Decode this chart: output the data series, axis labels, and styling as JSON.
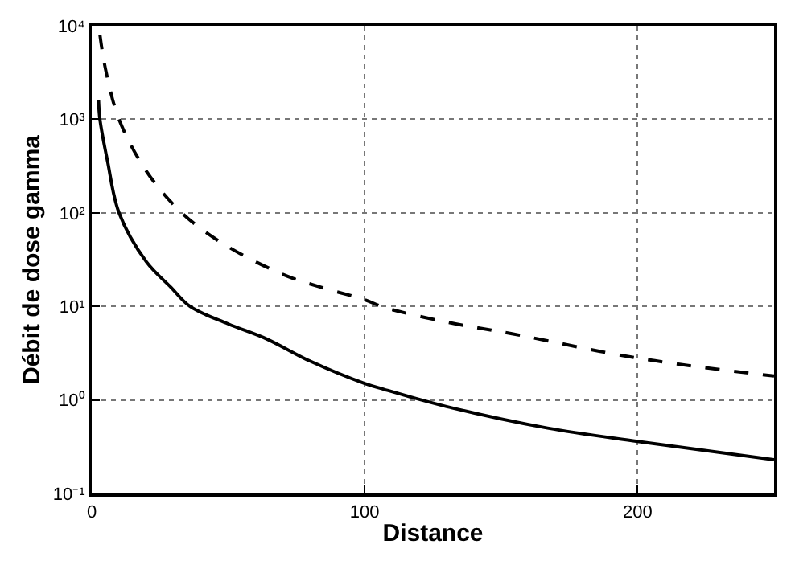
{
  "chart_data": {
    "type": "line",
    "xlabel": "Distance",
    "ylabel": "Débit de dose gamma",
    "log": "y",
    "grid": true,
    "marker": "none",
    "xlim": [
      0,
      250
    ],
    "xticks": [
      0,
      100,
      200
    ],
    "ylim": [
      0.1,
      10000
    ],
    "yticks": [
      {
        "value": 0.1,
        "label": "10⁻¹"
      },
      {
        "value": 1,
        "label": "10⁰"
      },
      {
        "value": 10,
        "label": "10¹"
      },
      {
        "value": 100,
        "label": "10²"
      },
      {
        "value": 1000,
        "label": "10³"
      },
      {
        "value": 10000,
        "label": "10⁴"
      }
    ],
    "series": [
      {
        "color": "#000000",
        "line_style": "solid",
        "x": [
          2.5,
          3,
          5.8,
          10,
          20,
          29,
          36,
          50,
          64,
          80,
          100,
          107,
          130,
          167,
          200,
          250
        ],
        "values": [
          1600,
          1000,
          355,
          100,
          30,
          16,
          10,
          6.5,
          4.5,
          2.6,
          1.5,
          1.3,
          0.85,
          0.5,
          0.36,
          0.23
        ]
      },
      {
        "color": "#000000",
        "line_style": "dashed",
        "x": [
          3,
          5,
          10,
          20,
          33,
          48.5,
          70,
          84,
          100,
          107,
          130,
          154,
          200,
          250
        ],
        "values": [
          8000,
          3500,
          1000,
          280,
          100,
          46,
          22,
          16,
          11.8,
          9.8,
          6.8,
          5.1,
          2.8,
          1.8
        ]
      }
    ]
  }
}
